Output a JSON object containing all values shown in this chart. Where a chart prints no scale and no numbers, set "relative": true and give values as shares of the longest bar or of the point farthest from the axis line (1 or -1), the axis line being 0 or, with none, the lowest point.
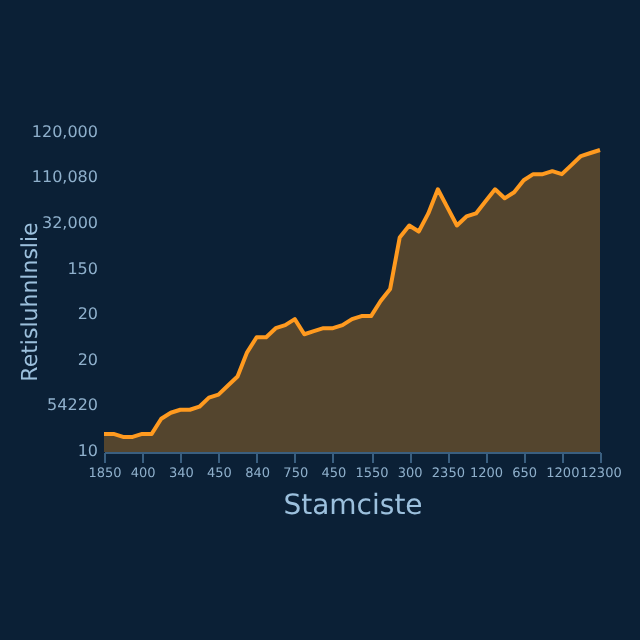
{
  "chart_data": {
    "type": "area",
    "relative": true,
    "xlabel": "Stamciste",
    "ylabel": "Retisluhnlnslie",
    "categories": [
      "1850",
      null,
      null,
      null,
      "400",
      null,
      null,
      null,
      "340",
      null,
      null,
      null,
      "450",
      null,
      null,
      null,
      "840",
      null,
      null,
      null,
      "750",
      null,
      null,
      null,
      "450",
      null,
      null,
      null,
      "1550",
      null,
      null,
      null,
      "300",
      null,
      null,
      null,
      "2350",
      null,
      null,
      null,
      "1200",
      null,
      null,
      null,
      "650",
      null,
      null,
      null,
      "1200",
      null,
      null,
      null,
      "12300"
    ],
    "series": [
      {
        "color": "#ff9a1f",
        "values": [
          0.06,
          0.06,
          0.05,
          0.05,
          0.06,
          0.06,
          0.11,
          0.13,
          0.14,
          0.14,
          0.15,
          0.18,
          0.19,
          0.22,
          0.25,
          0.33,
          0.38,
          0.38,
          0.41,
          0.42,
          0.44,
          0.39,
          0.4,
          0.41,
          0.41,
          0.42,
          0.44,
          0.45,
          0.45,
          0.5,
          0.54,
          0.71,
          0.75,
          0.73,
          0.79,
          0.87,
          0.81,
          0.75,
          0.78,
          0.79,
          0.83,
          0.87,
          0.84,
          0.86,
          0.9,
          0.92,
          0.92,
          0.93,
          0.92,
          0.95,
          0.98,
          0.99,
          1
        ]
      }
    ],
    "annotations": [
      "10",
      "54220",
      "20",
      "20",
      "150",
      "32,000",
      "110,080",
      "120,000"
    ]
  }
}
